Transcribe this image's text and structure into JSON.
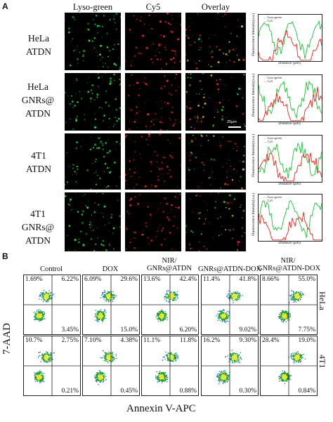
{
  "panel_a": {
    "letter": "A",
    "columns": [
      "Lyso-green",
      "Cy5",
      "Overlay"
    ],
    "rows": [
      {
        "label_lines": [
          "HeLa",
          "ATDN"
        ]
      },
      {
        "label_lines": [
          "HeLa",
          "GNRs@",
          "ATDN"
        ]
      },
      {
        "label_lines": [
          "4T1",
          "ATDN"
        ]
      },
      {
        "label_lines": [
          "4T1",
          "GNRs@",
          "ATDN"
        ]
      }
    ],
    "scale_bar": "25μm",
    "line_profile": {
      "y_label": "Fluorescence Intensity(a.u.)",
      "x_label": "Distance (μm)",
      "legend": [
        "Lyso-green",
        "Cy5"
      ],
      "colors": {
        "green": "#1fbf3a",
        "red": "#e8271f"
      }
    }
  },
  "panel_b": {
    "letter": "B",
    "groups": [
      {
        "lines": [
          "Control"
        ]
      },
      {
        "lines": [
          "DOX"
        ]
      },
      {
        "lines": [
          "NIR/",
          "GNRs@ATDN"
        ]
      },
      {
        "lines": [
          "GNRs@ATDN-DOX"
        ]
      },
      {
        "lines": [
          "NIR/",
          "GNRs@ATDN-DOX"
        ]
      }
    ],
    "cell_lines": [
      "HeLa",
      "4T1"
    ],
    "x_axis": "Annexin V-APC",
    "y_axis": "7-AAD",
    "quadrants": [
      [
        {
          "ul": "1.69%",
          "ur": "6.22%",
          "lr": "3.45%"
        },
        {
          "ul": "6.09%",
          "ur": "29.6%",
          "lr": "15.0%"
        },
        {
          "ul": "13.6%",
          "ur": "42.4%",
          "lr": "6.20%"
        },
        {
          "ul": "11.4%",
          "ur": "41.8%",
          "lr": "9.02%"
        },
        {
          "ul": "8.66%",
          "ur": "55.0%",
          "lr": "7.75%"
        }
      ],
      [
        {
          "ul": "10.7%",
          "ur": "2.75%",
          "lr": "0.21%"
        },
        {
          "ul": "7.10%",
          "ur": "4.38%",
          "lr": "0.45%"
        },
        {
          "ul": "11.1%",
          "ur": "11.8%",
          "lr": "0.88%"
        },
        {
          "ul": "16.2%",
          "ur": "9.30%",
          "lr": "0.30%"
        },
        {
          "ul": "28.4%",
          "ur": "19.0%",
          "lr": "0.84%"
        }
      ]
    ],
    "colors": {
      "dense": "#1d9b3a",
      "mid": "#2f7fd6",
      "sparse": "#1a2f9a",
      "hot": "#e3e82a"
    }
  }
}
